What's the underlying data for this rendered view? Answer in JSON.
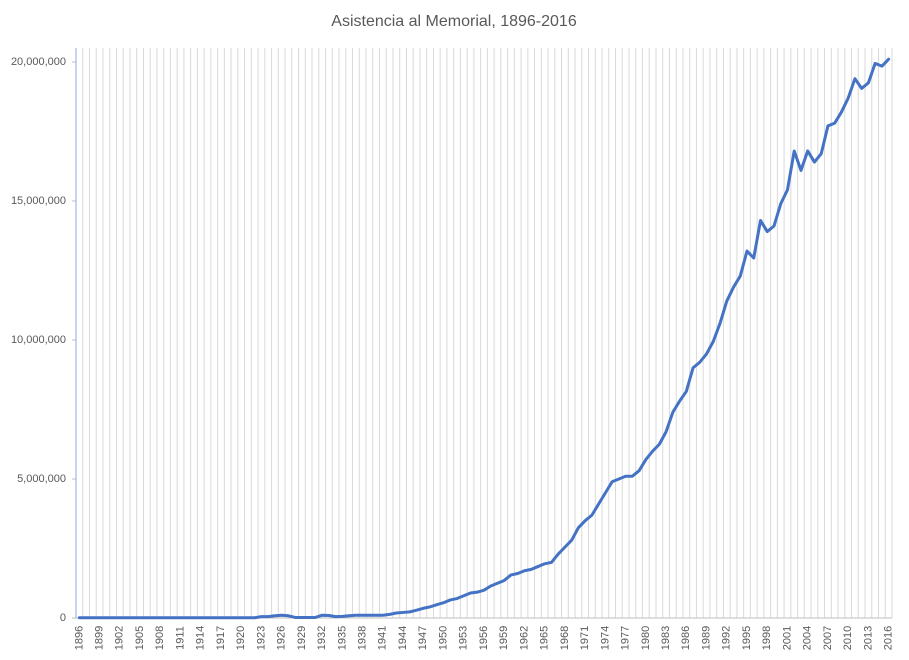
{
  "chart_data": {
    "type": "line",
    "title": "Asistencia al Memorial, 1896-2016",
    "categories": [
      "1896",
      null,
      null,
      "1899",
      null,
      null,
      "1902",
      null,
      null,
      "1905",
      null,
      null,
      "1908",
      null,
      null,
      "1911",
      null,
      null,
      "1914",
      null,
      null,
      "1917",
      null,
      null,
      "1920",
      null,
      null,
      "1923",
      null,
      null,
      "1926",
      null,
      null,
      "1929",
      null,
      null,
      "1932",
      null,
      null,
      "1935",
      null,
      null,
      "1938",
      null,
      null,
      "1941",
      null,
      null,
      "1944",
      null,
      null,
      "1947",
      null,
      null,
      "1950",
      null,
      null,
      "1953",
      null,
      null,
      "1956",
      null,
      null,
      "1959",
      null,
      null,
      "1962",
      null,
      null,
      "1965",
      null,
      null,
      "1968",
      null,
      null,
      "1971",
      null,
      null,
      "1974",
      null,
      null,
      "1977",
      null,
      null,
      "1980",
      null,
      null,
      "1983",
      null,
      null,
      "1986",
      null,
      null,
      "1989",
      null,
      null,
      "1992",
      null,
      null,
      "1995",
      null,
      null,
      "1998",
      null,
      null,
      "2001",
      null,
      null,
      "2004",
      null,
      null,
      "2007",
      null,
      null,
      "2010",
      null,
      null,
      "2013",
      null,
      null,
      "2016"
    ],
    "values": [
      10000,
      10000,
      10000,
      10000,
      10000,
      10000,
      10000,
      10000,
      10000,
      10000,
      10000,
      10000,
      10000,
      10000,
      10000,
      10000,
      10000,
      10000,
      10000,
      10000,
      10000,
      10000,
      10000,
      10000,
      10000,
      10000,
      10000,
      50000,
      50000,
      80000,
      100000,
      80000,
      20000,
      20000,
      20000,
      20000,
      100000,
      90000,
      50000,
      60000,
      80000,
      100000,
      100000,
      100000,
      100000,
      100000,
      130000,
      180000,
      200000,
      220000,
      280000,
      350000,
      400000,
      480000,
      550000,
      650000,
      700000,
      800000,
      900000,
      930000,
      1000000,
      1150000,
      1250000,
      1350000,
      1550000,
      1600000,
      1700000,
      1750000,
      1850000,
      1950000,
      2000000,
      2300000,
      2550000,
      2800000,
      3250000,
      3500000,
      3700000,
      4100000,
      4500000,
      4900000,
      5000000,
      5100000,
      5100000,
      5300000,
      5700000,
      6000000,
      6250000,
      6700000,
      7400000,
      7800000,
      8150000,
      9000000,
      9200000,
      9500000,
      9950000,
      10600000,
      11400000,
      11900000,
      12300000,
      13200000,
      12950000,
      14300000,
      13900000,
      14100000,
      14900000,
      15400000,
      16800000,
      16100000,
      16800000,
      16400000,
      16700000,
      17700000,
      17800000,
      18200000,
      18700000,
      19400000,
      19050000,
      19250000,
      19950000,
      19850000,
      20100000
    ],
    "color": "#4472c4",
    "ylim": [
      0,
      20000000
    ],
    "yticks": [
      0,
      {
        "value": 5000000,
        "label": "5,000,000"
      },
      {
        "value": 10000000,
        "label": "10,000,000"
      },
      {
        "value": 15000000,
        "label": "15,000,000"
      },
      {
        "value": 20000000,
        "label": "20,000,000"
      }
    ],
    "grid": true
  }
}
